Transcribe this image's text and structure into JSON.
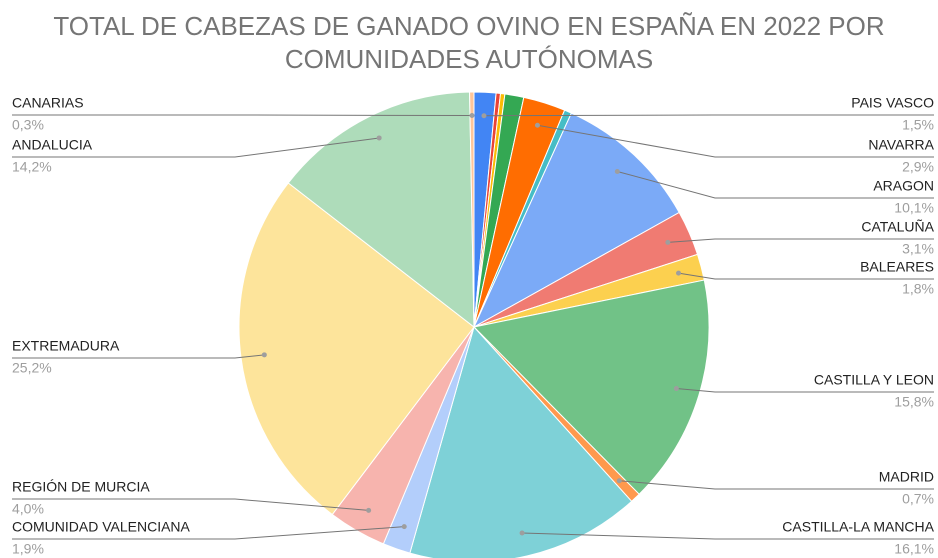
{
  "chart_data": {
    "type": "pie",
    "title": "TOTAL DE CABEZAS DE GANADO OVINO EN ESPAÑA EN 2022 POR COMUNIDADES AUTÓNOMAS",
    "categories": [
      "PAIS VASCO",
      null,
      null,
      null,
      "NAVARRA",
      null,
      "ARAGON",
      "CATALUÑA",
      "BALEARES",
      "CASTILLA Y LEON",
      "MADRID",
      "CASTILLA-LA MANCHA",
      "COMUNIDAD VALENCIANA",
      "REGIÓN DE MURCIA",
      "EXTREMADURA",
      "ANDALUCIA",
      "CANARIAS"
    ],
    "values": [
      1.5,
      0.3,
      0.3,
      1.3,
      2.9,
      0.5,
      10.1,
      3.1,
      1.8,
      15.8,
      0.7,
      16.1,
      1.9,
      4.0,
      25.2,
      14.2,
      0.3
    ],
    "value_labels": [
      "1,5%",
      null,
      null,
      null,
      "2,9%",
      null,
      "10,1%",
      "3,1%",
      "1,8%",
      "15,8%",
      "0,7%",
      "16,1%",
      "1,9%",
      "4,0%",
      "25,2%",
      "14,2%",
      "0,3%"
    ],
    "colors": [
      "#4285f4",
      "#ea4335",
      "#fbbc04",
      "#34a853",
      "#ff6d01",
      "#46bdc6",
      "#7baaf7",
      "#f07b72",
      "#fcd04f",
      "#71c287",
      "#ff994d",
      "#7ed1d7",
      "#b3cefb",
      "#f7b4ae",
      "#fde49b",
      "#aedcba",
      "#ffc599"
    ]
  }
}
